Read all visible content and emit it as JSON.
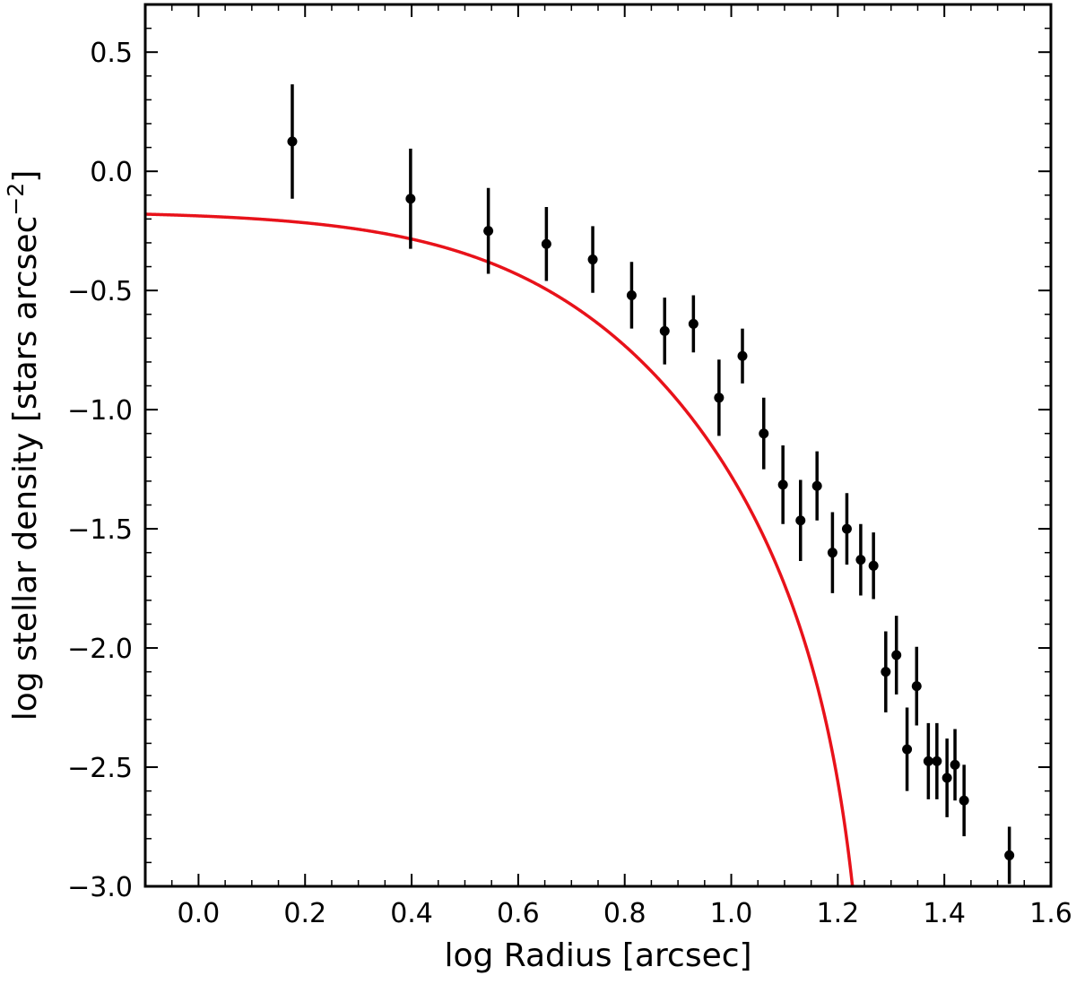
{
  "chart_data": {
    "type": "scatter",
    "xlabel": "log Radius [arcsec]",
    "ylabel_text": "log stellar density [stars arcsec",
    "ylabel_sup": "−2",
    "ylabel_close": "]",
    "xlim": [
      -0.1,
      1.6
    ],
    "ylim": [
      -3.0,
      0.7
    ],
    "xticks": [
      0.0,
      0.2,
      0.4,
      0.6,
      0.8,
      1.0,
      1.2,
      1.4,
      1.6
    ],
    "xtick_labels": [
      "0.0",
      "0.2",
      "0.4",
      "0.6",
      "0.8",
      "1.0",
      "1.2",
      "1.4",
      "1.6"
    ],
    "yticks": [
      0.5,
      0.0,
      -0.5,
      -1.0,
      -1.5,
      -2.0,
      -2.5,
      -3.0
    ],
    "ytick_labels": [
      "0.5",
      "0.0",
      "−0.5",
      "−1.0",
      "−1.5",
      "−2.0",
      "−2.5",
      "−3.0"
    ],
    "grid": false,
    "colors": {
      "points": "#000000",
      "fit": "#e8121a"
    },
    "points": [
      {
        "x": 0.176,
        "y": 0.125,
        "err": 0.24
      },
      {
        "x": 0.398,
        "y": -0.115,
        "err": 0.21
      },
      {
        "x": 0.544,
        "y": -0.25,
        "err": 0.18
      },
      {
        "x": 0.653,
        "y": -0.305,
        "err": 0.155
      },
      {
        "x": 0.74,
        "y": -0.37,
        "err": 0.14
      },
      {
        "x": 0.813,
        "y": -0.52,
        "err": 0.14
      },
      {
        "x": 0.875,
        "y": -0.67,
        "err": 0.14
      },
      {
        "x": 0.929,
        "y": -0.64,
        "err": 0.12
      },
      {
        "x": 0.977,
        "y": -0.95,
        "err": 0.16
      },
      {
        "x": 1.021,
        "y": -0.775,
        "err": 0.115
      },
      {
        "x": 1.061,
        "y": -1.1,
        "err": 0.15
      },
      {
        "x": 1.097,
        "y": -1.315,
        "err": 0.165
      },
      {
        "x": 1.13,
        "y": -1.465,
        "err": 0.17
      },
      {
        "x": 1.161,
        "y": -1.32,
        "err": 0.145
      },
      {
        "x": 1.19,
        "y": -1.6,
        "err": 0.17
      },
      {
        "x": 1.217,
        "y": -1.5,
        "err": 0.15
      },
      {
        "x": 1.243,
        "y": -1.63,
        "err": 0.15
      },
      {
        "x": 1.267,
        "y": -1.655,
        "err": 0.14
      },
      {
        "x": 1.29,
        "y": -2.1,
        "err": 0.17
      },
      {
        "x": 1.31,
        "y": -2.03,
        "err": 0.165
      },
      {
        "x": 1.33,
        "y": -2.425,
        "err": 0.175
      },
      {
        "x": 1.348,
        "y": -2.16,
        "err": 0.165
      },
      {
        "x": 1.37,
        "y": -2.475,
        "err": 0.16
      },
      {
        "x": 1.386,
        "y": -2.475,
        "err": 0.16
      },
      {
        "x": 1.405,
        "y": -2.545,
        "err": 0.165
      },
      {
        "x": 1.42,
        "y": -2.49,
        "err": 0.15
      },
      {
        "x": 1.437,
        "y": -2.64,
        "err": 0.15
      },
      {
        "x": 1.522,
        "y": -2.87,
        "err": 0.12
      }
    ],
    "fit": {
      "type": "king",
      "k": 1.32,
      "rc": 5.5,
      "rt": 18.7
    }
  }
}
